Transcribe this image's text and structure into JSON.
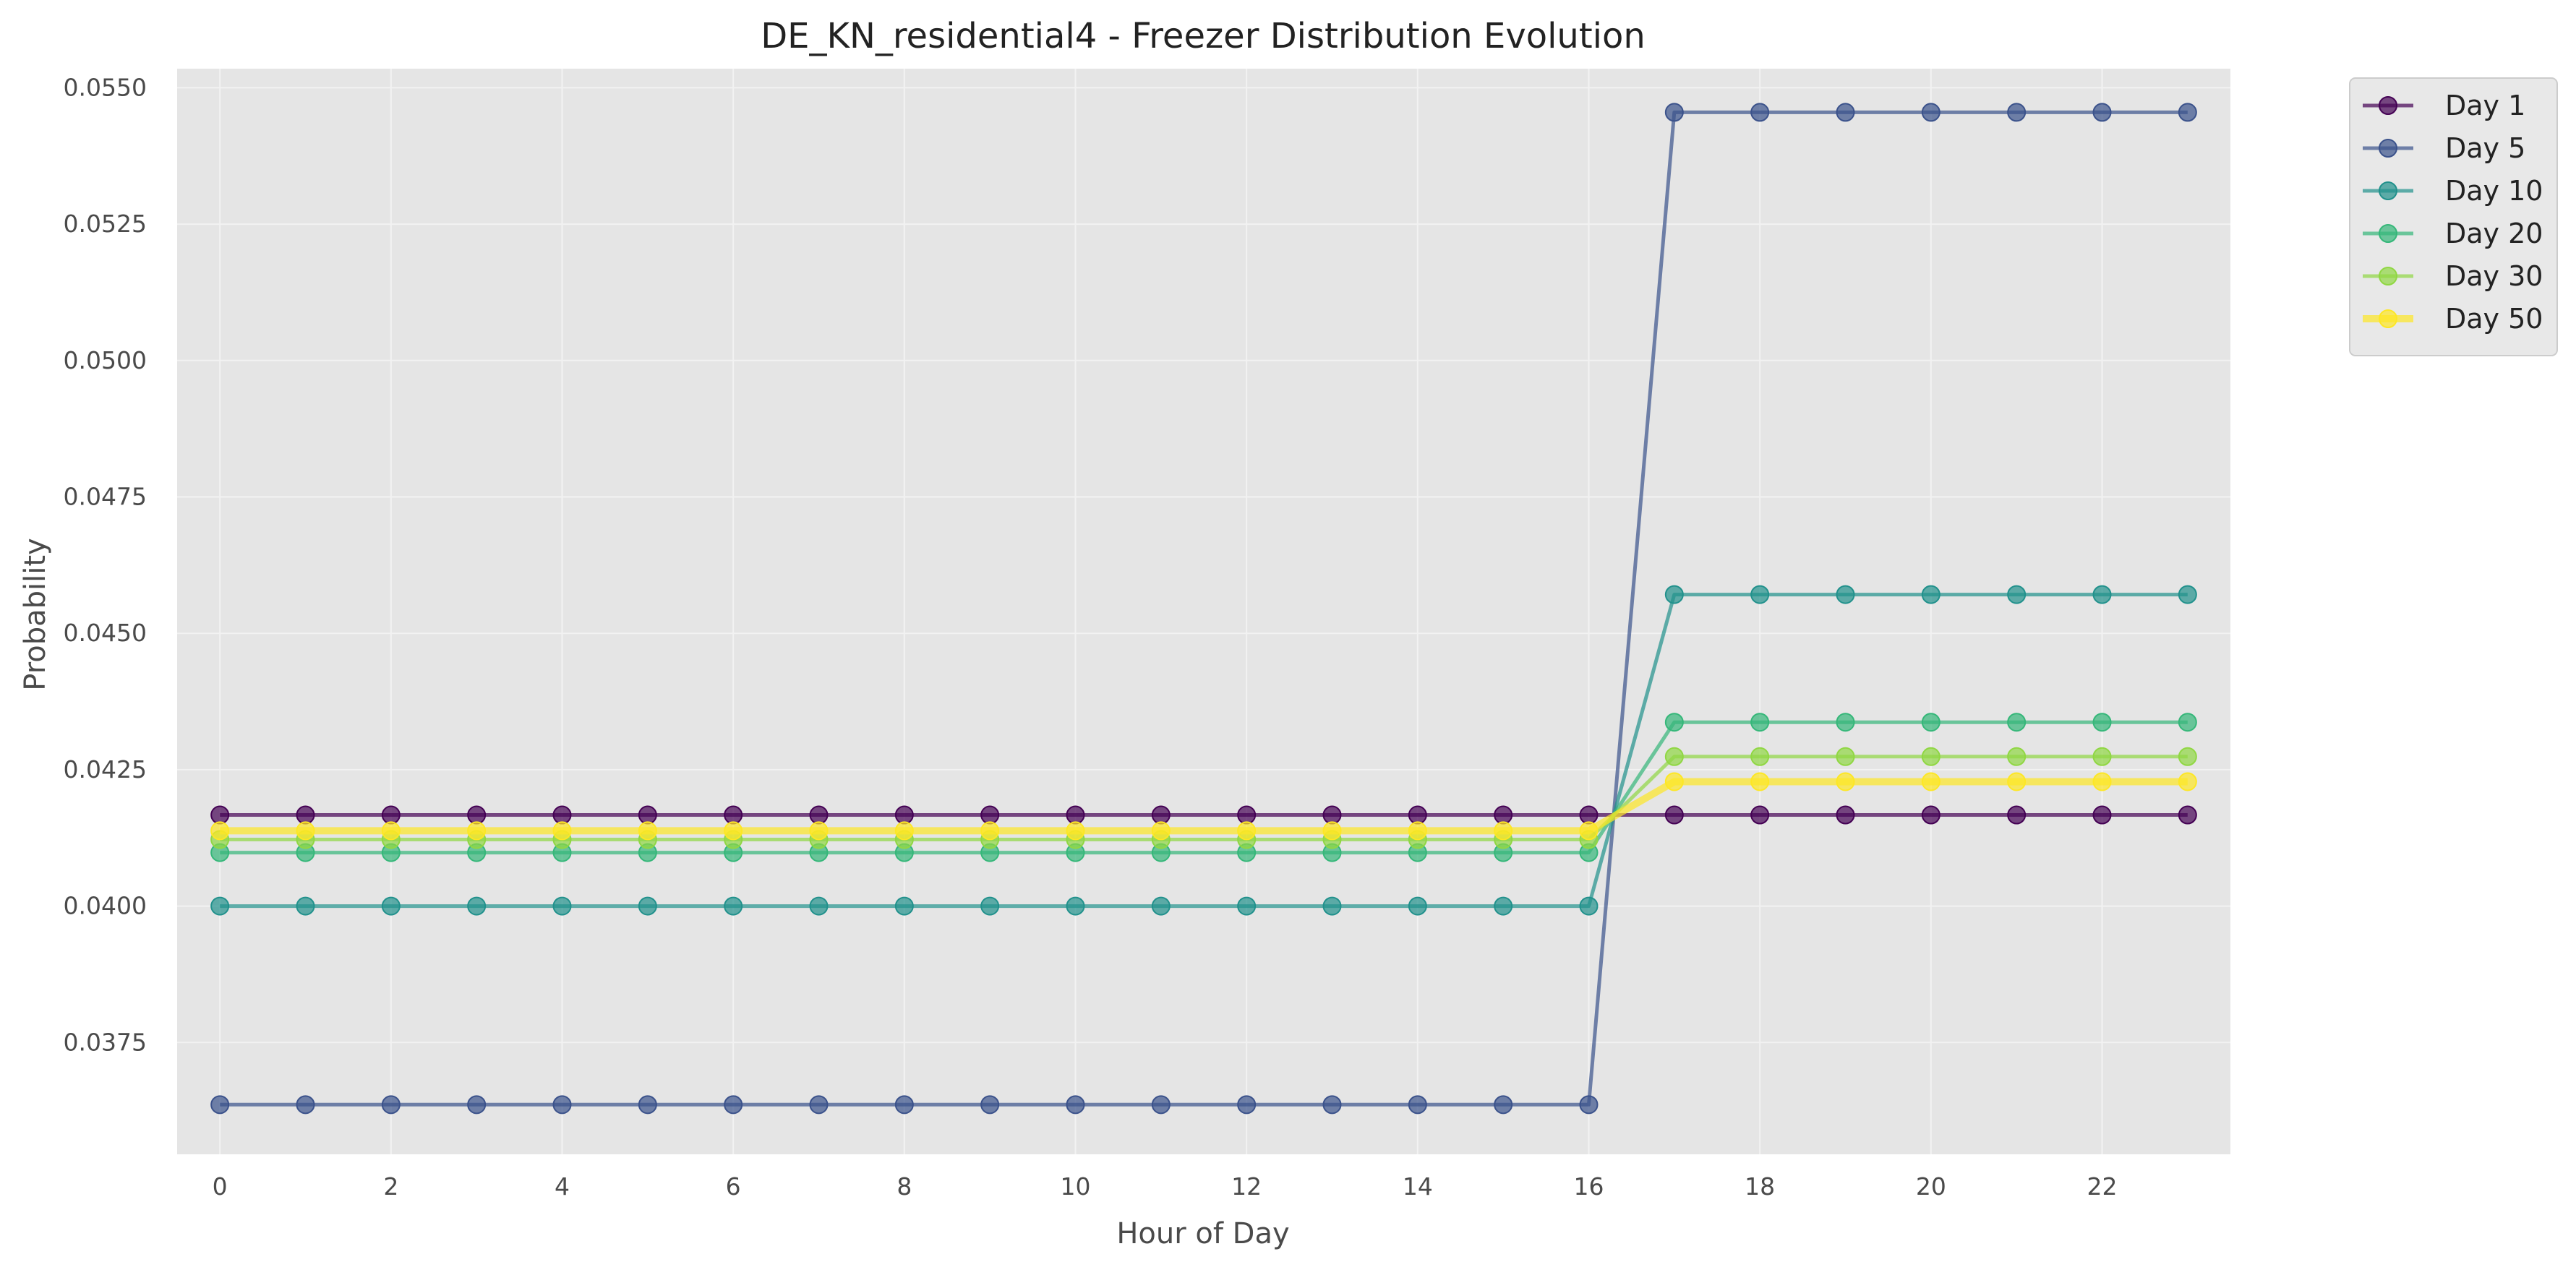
{
  "chart_data": {
    "type": "line",
    "title": "DE_KN_residential4 - Freezer Distribution Evolution",
    "xlabel": "Hour of Day",
    "ylabel": "Probability",
    "x": [
      0,
      1,
      2,
      3,
      4,
      5,
      6,
      7,
      8,
      9,
      10,
      11,
      12,
      13,
      14,
      15,
      16,
      17,
      18,
      19,
      20,
      21,
      22,
      23
    ],
    "xticks": [
      0,
      2,
      4,
      6,
      8,
      10,
      12,
      14,
      16,
      18,
      20,
      22
    ],
    "yticks": [
      0.0375,
      0.04,
      0.0425,
      0.045,
      0.0475,
      0.05,
      0.0525,
      0.055
    ],
    "ytick_labels": [
      "0.0375",
      "0.0400",
      "0.0425",
      "0.0450",
      "0.0475",
      "0.0500",
      "0.0525",
      "0.0550"
    ],
    "xlim": [
      -0.5,
      23.5
    ],
    "ylim": [
      0.03545,
      0.05535
    ],
    "grid": true,
    "legend_position": "outside-top-right",
    "background_color": "#e5e5e5",
    "series": [
      {
        "name": "Day 1",
        "color": "#440154",
        "linewidth": 2.5,
        "values": [
          0.04167,
          0.04167,
          0.04167,
          0.04167,
          0.04167,
          0.04167,
          0.04167,
          0.04167,
          0.04167,
          0.04167,
          0.04167,
          0.04167,
          0.04167,
          0.04167,
          0.04167,
          0.04167,
          0.04167,
          0.04167,
          0.04167,
          0.04167,
          0.04167,
          0.04167,
          0.04167,
          0.04167
        ]
      },
      {
        "name": "Day 5",
        "color": "#3b528b",
        "linewidth": 2.5,
        "values": [
          0.03636,
          0.03636,
          0.03636,
          0.03636,
          0.03636,
          0.03636,
          0.03636,
          0.03636,
          0.03636,
          0.03636,
          0.03636,
          0.03636,
          0.03636,
          0.03636,
          0.03636,
          0.03636,
          0.03636,
          0.05455,
          0.05455,
          0.05455,
          0.05455,
          0.05455,
          0.05455,
          0.05455
        ]
      },
      {
        "name": "Day 10",
        "color": "#21918c",
        "linewidth": 2.5,
        "values": [
          0.04,
          0.04,
          0.04,
          0.04,
          0.04,
          0.04,
          0.04,
          0.04,
          0.04,
          0.04,
          0.04,
          0.04,
          0.04,
          0.04,
          0.04,
          0.04,
          0.04,
          0.04571,
          0.04571,
          0.04571,
          0.04571,
          0.04571,
          0.04571,
          0.04571
        ]
      },
      {
        "name": "Day 20",
        "color": "#35b779",
        "linewidth": 2.5,
        "values": [
          0.04098,
          0.04098,
          0.04098,
          0.04098,
          0.04098,
          0.04098,
          0.04098,
          0.04098,
          0.04098,
          0.04098,
          0.04098,
          0.04098,
          0.04098,
          0.04098,
          0.04098,
          0.04098,
          0.04098,
          0.04337,
          0.04337,
          0.04337,
          0.04337,
          0.04337,
          0.04337,
          0.04337
        ]
      },
      {
        "name": "Day 30",
        "color": "#90d743",
        "linewidth": 2.5,
        "values": [
          0.04122,
          0.04122,
          0.04122,
          0.04122,
          0.04122,
          0.04122,
          0.04122,
          0.04122,
          0.04122,
          0.04122,
          0.04122,
          0.04122,
          0.04122,
          0.04122,
          0.04122,
          0.04122,
          0.04122,
          0.04274,
          0.04274,
          0.04274,
          0.04274,
          0.04274,
          0.04274,
          0.04274
        ]
      },
      {
        "name": "Day 50",
        "color": "#fde725",
        "linewidth": 5,
        "values": [
          0.04138,
          0.04138,
          0.04138,
          0.04138,
          0.04138,
          0.04138,
          0.04138,
          0.04138,
          0.04138,
          0.04138,
          0.04138,
          0.04138,
          0.04138,
          0.04138,
          0.04138,
          0.04138,
          0.04138,
          0.04228,
          0.04228,
          0.04228,
          0.04228,
          0.04228,
          0.04228,
          0.04228
        ]
      }
    ]
  }
}
